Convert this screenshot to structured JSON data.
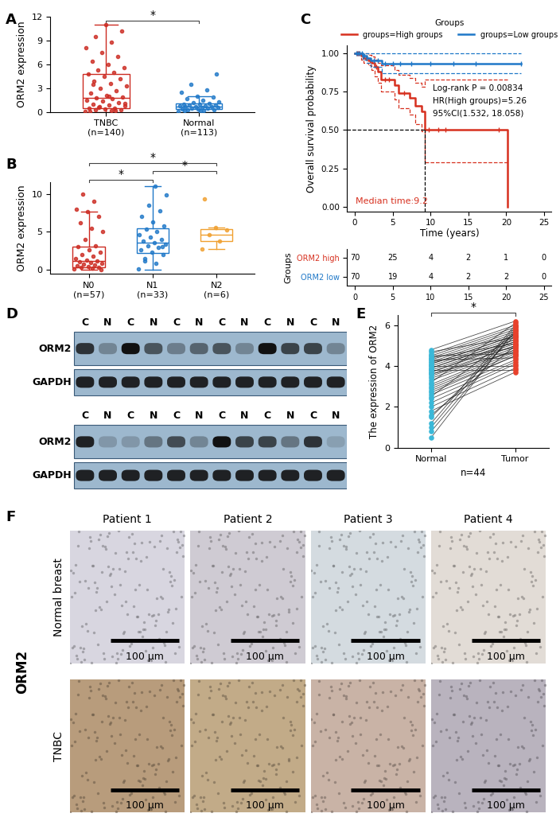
{
  "chart_data": [
    {
      "panel": "A",
      "type": "box",
      "ylabel": "ORM2 expression",
      "categories": [
        "TNBC\n(n=140)",
        "Normal\n(n=113)"
      ],
      "colors": [
        "#CC2B22",
        "#1F78C8"
      ],
      "boxes": [
        {
          "whislo": 0,
          "q1": 0.5,
          "med": 1.8,
          "q3": 4.8,
          "whishi": 11.0
        },
        {
          "whislo": 0,
          "q1": 0.4,
          "med": 0.7,
          "q3": 1.1,
          "whishi": 2.0
        }
      ],
      "points": [
        [
          0.1,
          0.2,
          0.3,
          0.3,
          0.4,
          0.5,
          0.5,
          0.6,
          0.8,
          0.9,
          1.0,
          1.2,
          1.4,
          1.5,
          1.7,
          1.8,
          1.9,
          2.1,
          2.4,
          2.7,
          3.0,
          3.3,
          3.6,
          3.9,
          4.2,
          4.5,
          4.8,
          5.0,
          5.3,
          5.6,
          6.0,
          6.4,
          7.0,
          7.5,
          8.1,
          8.8,
          9.5,
          10.2,
          11.0,
          0.05,
          0.15,
          0.7,
          1.1,
          2.0,
          3.5
        ],
        [
          0.1,
          0.2,
          0.3,
          0.3,
          0.4,
          0.4,
          0.5,
          0.5,
          0.6,
          0.6,
          0.7,
          0.7,
          0.7,
          0.8,
          0.8,
          0.9,
          0.9,
          1.0,
          1.0,
          1.1,
          1.2,
          1.3,
          1.5,
          1.7,
          1.9,
          2.0,
          2.5,
          2.8,
          3.5,
          4.8,
          0.05,
          0.15
        ]
      ],
      "ylim": [
        0,
        12
      ],
      "yticks": [
        0,
        3,
        6,
        9,
        12
      ],
      "significance": [
        {
          "between": [
            "TNBC\n(n=140)",
            "Normal\n(n=113)"
          ],
          "label": "*"
        }
      ]
    },
    {
      "panel": "B",
      "type": "box",
      "ylabel": "ORM2 expression",
      "categories": [
        "N0\n(n=57)",
        "N1\n(n=33)",
        "N2\n(n=6)"
      ],
      "colors": [
        "#CC2B22",
        "#1F78C8",
        "#F0A030"
      ],
      "boxes": [
        {
          "whislo": 0,
          "q1": 0.3,
          "med": 1.2,
          "q3": 3.0,
          "whishi": 7.7
        },
        {
          "whislo": 0,
          "q1": 2.2,
          "med": 3.6,
          "q3": 5.5,
          "whishi": 11.0
        },
        {
          "whislo": 2.7,
          "q1": 3.8,
          "med": 4.6,
          "q3": 5.4,
          "whishi": 5.6
        }
      ],
      "points": [
        [
          0.1,
          0.2,
          0.3,
          0.3,
          0.4,
          0.5,
          0.6,
          0.7,
          0.8,
          1.0,
          1.1,
          1.2,
          1.3,
          1.5,
          1.8,
          2.0,
          2.3,
          2.6,
          3.0,
          3.2,
          4.0,
          5.0,
          5.5,
          6.2,
          7.0,
          7.7,
          8.0,
          9.0,
          10.0,
          0.05
        ],
        [
          0.1,
          0.8,
          1.5,
          2.0,
          2.3,
          2.6,
          2.9,
          3.2,
          3.4,
          3.6,
          3.8,
          4.0,
          4.3,
          4.6,
          5.0,
          5.4,
          5.8,
          6.3,
          7.0,
          7.8,
          8.5,
          9.8,
          11.0,
          1.2,
          3.0
        ],
        [
          2.7,
          3.8,
          4.6,
          5.2,
          5.6,
          9.3
        ]
      ],
      "ylim": [
        -0.5,
        11.5
      ],
      "yticks": [
        0,
        5,
        10
      ],
      "significance": [
        {
          "between": [
            "N0\n(n=57)",
            "N1\n(n=33)"
          ],
          "label": "*"
        },
        {
          "between": [
            "N1\n(n=33)",
            "N2\n(n=6)"
          ],
          "label": "*"
        },
        {
          "between": [
            "N0\n(n=57)",
            "N2\n(n=6)"
          ],
          "label": "*"
        }
      ]
    },
    {
      "panel": "C",
      "type": "survival",
      "xlabel": "Time (years)",
      "ylabel": "Overall survival probability",
      "xlim": [
        -1,
        26
      ],
      "xticks": [
        0,
        5,
        10,
        15,
        20,
        25
      ],
      "ylim": [
        -0.03,
        1.05
      ],
      "yticks": [
        {
          "value": 0,
          "label": "0.00"
        },
        {
          "value": 0.25,
          "label": "0.25"
        },
        {
          "value": 0.5,
          "label": "0.50"
        },
        {
          "value": 0.75,
          "label": "0.75"
        },
        {
          "value": 1.0,
          "label": "1.00"
        }
      ],
      "legend": "top",
      "legend_title": "Groups",
      "series": [
        {
          "name": "groups=High groups",
          "color": "#D7301F",
          "times": [
            0,
            0.8,
            1.2,
            1.8,
            2.2,
            2.6,
            3.0,
            3.5,
            5.3,
            5.8,
            7.2,
            8.0,
            8.8,
            9.2,
            20.2
          ],
          "survival": [
            1.0,
            0.985,
            0.97,
            0.955,
            0.94,
            0.91,
            0.88,
            0.83,
            0.79,
            0.74,
            0.71,
            0.66,
            0.62,
            0.5,
            0.0
          ],
          "upper": [
            1.0,
            1.0,
            1.0,
            0.99,
            0.98,
            0.96,
            0.94,
            0.92,
            0.89,
            0.86,
            0.84,
            0.81,
            0.78,
            0.83,
            null
          ],
          "lower": [
            1.0,
            0.96,
            0.94,
            0.92,
            0.89,
            0.85,
            0.81,
            0.75,
            0.7,
            0.64,
            0.6,
            0.54,
            0.49,
            0.29,
            null
          ],
          "censored": [
            0.3,
            0.5,
            1.0,
            1.5,
            2.0,
            2.8,
            4.0,
            4.5,
            6.5,
            9.8,
            11,
            12,
            19
          ]
        },
        {
          "name": "groups=Low groups",
          "color": "#1F78C8",
          "times": [
            0,
            1.0,
            1.6,
            2.1,
            3.6,
            22
          ],
          "survival": [
            1.0,
            0.985,
            0.97,
            0.955,
            0.935,
            0.935
          ],
          "upper": [
            1.0,
            1.0,
            1.0,
            1.0,
            1.0,
            1.0
          ],
          "lower": [
            1.0,
            0.96,
            0.94,
            0.91,
            0.87,
            0.87
          ],
          "censored": [
            0.2,
            0.4,
            0.6,
            0.9,
            1.3,
            2.5,
            3,
            4,
            5,
            6,
            7.5,
            10,
            13,
            16,
            22
          ]
        }
      ],
      "median_line": {
        "x": 9.2,
        "y": 0.5
      },
      "annotations": [
        "Log-rank P = 0.00834",
        "HR(High groups)=5.26",
        "95%CI(1.532, 18.058)"
      ],
      "median_label": "Median time:9.2",
      "risk_table": {
        "ylabel": "Groups",
        "times": [
          0,
          5,
          10,
          15,
          20,
          25
        ],
        "rows": [
          {
            "name": "ORM2 high",
            "color": "#D7301F",
            "counts": [
              70,
              25,
              4,
              2,
              1,
              0
            ]
          },
          {
            "name": "ORM2 low",
            "color": "#1F78C8",
            "counts": [
              70,
              19,
              4,
              2,
              2,
              0
            ]
          }
        ]
      }
    },
    {
      "panel": "E",
      "type": "paired",
      "ylabel": "The expression of ORM2",
      "xlabel": "n=44",
      "categories": [
        "Normal",
        "Tumor"
      ],
      "colors": [
        "#3BB8D8",
        "#E8412C"
      ],
      "values": [
        [
          4.8,
          4.7,
          4.6,
          4.5,
          4.5,
          4.4,
          4.4,
          4.3,
          4.3,
          4.2,
          4.2,
          4.1,
          4.1,
          4.0,
          4.0,
          3.9,
          3.9,
          3.8,
          3.8,
          3.7,
          3.7,
          3.6,
          3.6,
          3.5,
          3.4,
          3.3,
          3.2,
          3.1,
          3.0,
          2.9,
          2.8,
          2.7,
          2.6,
          2.5,
          2.4,
          2.2,
          2.0,
          1.8,
          1.6,
          1.5,
          1.2,
          1.0,
          0.8,
          0.5
        ],
        [
          6.2,
          5.4,
          6.0,
          4.6,
          5.9,
          5.1,
          5.8,
          4.4,
          5.7,
          5.6,
          4.9,
          5.5,
          5.5,
          5.4,
          4.0,
          5.3,
          5.3,
          5.2,
          3.8,
          5.2,
          5.1,
          5.0,
          4.7,
          5.0,
          4.9,
          4.8,
          6.1,
          4.8,
          4.7,
          4.6,
          4.5,
          4.5,
          4.3,
          5.6,
          4.2,
          4.1,
          3.9,
          3.7,
          5.0,
          5.5,
          6.0,
          5.9,
          5.7,
          5.8
        ]
      ],
      "ylim": [
        0,
        6.5
      ],
      "yticks": [
        0,
        2,
        4,
        6
      ],
      "significance": [
        {
          "between": [
            "Normal",
            "Tumor"
          ],
          "label": "*"
        }
      ]
    }
  ],
  "blot": {
    "panel": "D",
    "blots": [
      {
        "lanes": [
          "C",
          "N",
          "C",
          "N",
          "C",
          "N",
          "C",
          "N",
          "C",
          "N",
          "C",
          "N"
        ],
        "bands": [
          {
            "name": "ORM2",
            "intensity": [
              0.8,
              0.3,
              1.0,
              0.6,
              0.35,
              0.5,
              0.6,
              0.3,
              1.0,
              0.7,
              0.7,
              0.3
            ]
          },
          {
            "name": "GAPDH",
            "intensity": [
              0.9,
              0.9,
              0.9,
              0.9,
              0.9,
              0.9,
              0.9,
              0.9,
              0.9,
              0.9,
              0.9,
              0.9
            ]
          }
        ]
      },
      {
        "lanes": [
          "C",
          "N",
          "C",
          "N",
          "C",
          "N",
          "C",
          "N",
          "C",
          "N",
          "C",
          "N"
        ],
        "bands": [
          {
            "name": "ORM2",
            "intensity": [
              0.9,
              0.2,
              0.2,
              0.4,
              0.65,
              0.3,
              1.0,
              0.7,
              0.7,
              0.4,
              0.8,
              0.15
            ]
          },
          {
            "name": "GAPDH",
            "intensity": [
              0.9,
              0.9,
              0.9,
              0.9,
              0.9,
              0.9,
              0.9,
              0.9,
              0.9,
              0.9,
              0.9,
              0.9
            ]
          }
        ]
      }
    ]
  },
  "ihc": {
    "panel": "F",
    "side_label": "ORM2",
    "columns": [
      "Patient 1",
      "Patient 2",
      "Patient 3",
      "Patient 4"
    ],
    "rows": [
      {
        "name": "Normal breast",
        "colors": [
          "#D8D6E0",
          "#CFCBD3",
          "#D4DBE0",
          "#E2DCD6"
        ]
      },
      {
        "name": "TNBC",
        "colors": [
          "#B89C7C",
          "#C2AB88",
          "#C9B3A6",
          "#B9B3BE"
        ]
      }
    ],
    "scale_bar": "100 μm"
  }
}
